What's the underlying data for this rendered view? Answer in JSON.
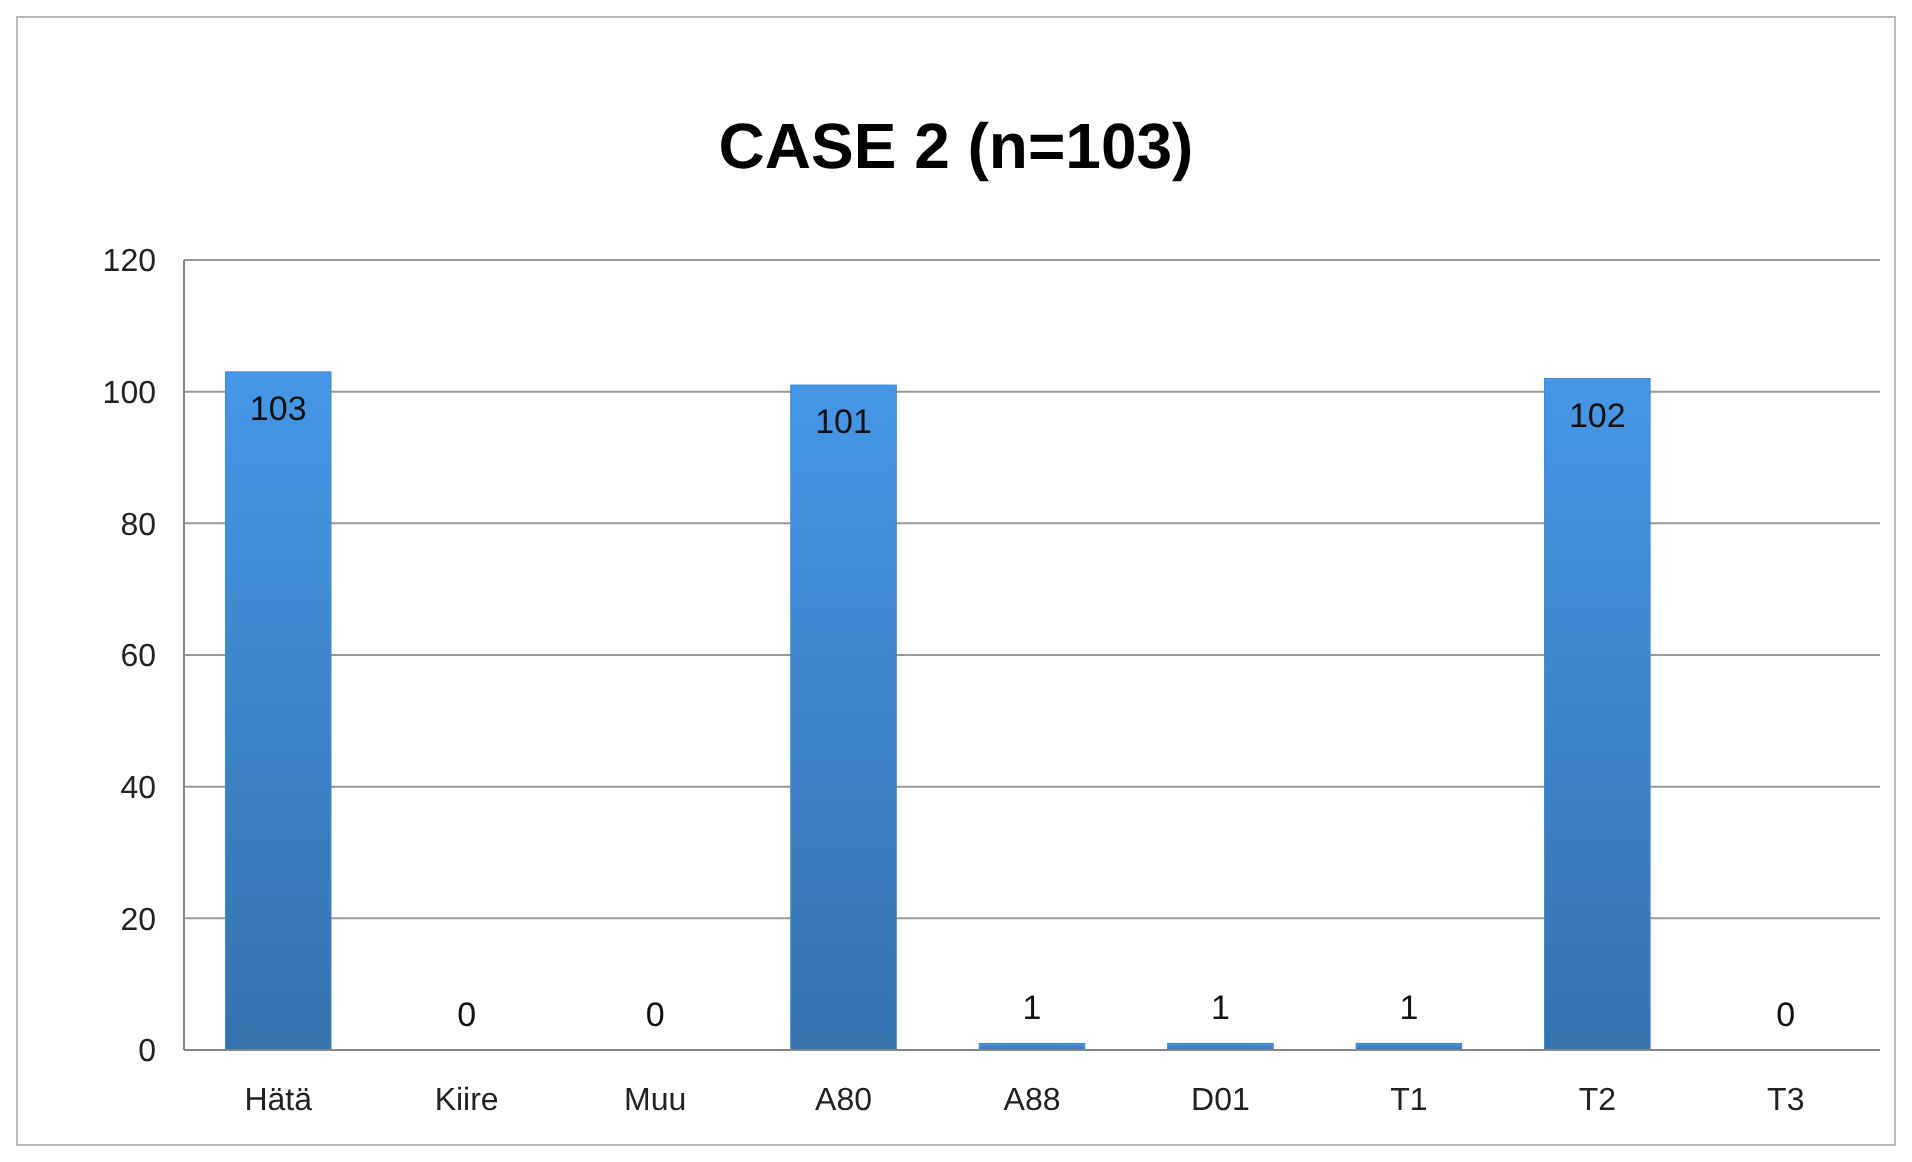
{
  "chart_data": {
    "type": "bar",
    "title": "CASE 2 (n=103)",
    "categories": [
      "Hätä",
      "Kiire",
      "Muu",
      "A80",
      "A88",
      "D01",
      "T1",
      "T2",
      "T3"
    ],
    "values": [
      103,
      0,
      0,
      101,
      1,
      1,
      1,
      102,
      0
    ],
    "color": "#3f88d0",
    "ylim": [
      0,
      120
    ],
    "yticks": [
      0,
      20,
      40,
      60,
      80,
      100,
      120
    ],
    "grid": "y",
    "data_labels": true
  }
}
